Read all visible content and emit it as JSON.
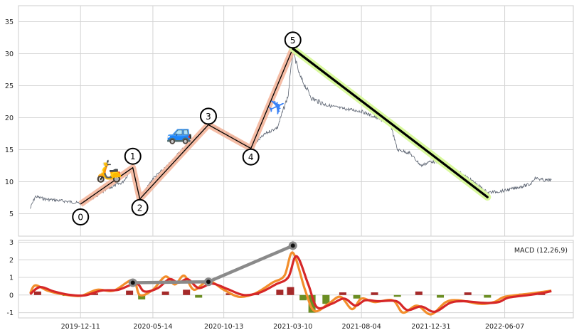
{
  "chart_data": [
    {
      "type": "line",
      "panel": "price",
      "title": "",
      "xlabel": "",
      "ylabel": "",
      "x_tick_labels": [
        "2019-12-11",
        "2020-05-14",
        "2020-10-13",
        "2021-03-10",
        "2021-08-04",
        "2021-12-31",
        "2022-06-07"
      ],
      "y_ticks": [
        5,
        10,
        15,
        20,
        25,
        30,
        35
      ],
      "ylim": [
        1.5,
        37.5
      ],
      "grid": true,
      "series": [
        {
          "role": "price",
          "color": "#5a6270",
          "points": [
            [
              "2019-08-25",
              5.8
            ],
            [
              "2019-09-05",
              7.7
            ],
            [
              "2019-09-25",
              7.3
            ],
            [
              "2019-10-20",
              7.1
            ],
            [
              "2019-11-15",
              6.9
            ],
            [
              "2019-12-11",
              6.6
            ],
            [
              "2020-01-10",
              7.6
            ],
            [
              "2020-02-10",
              9.0
            ],
            [
              "2020-03-10",
              9.9
            ],
            [
              "2020-04-01",
              12.2
            ],
            [
              "2020-04-12",
              8.5
            ],
            [
              "2020-04-16",
              7.2
            ],
            [
              "2020-05-14",
              10.5
            ],
            [
              "2020-06-15",
              12.5
            ],
            [
              "2020-07-15",
              15.0
            ],
            [
              "2020-08-15",
              16.8
            ],
            [
              "2020-09-10",
              18.9
            ],
            [
              "2020-10-13",
              17.8
            ],
            [
              "2020-11-15",
              16.3
            ],
            [
              "2020-12-10",
              15.4
            ],
            [
              "2021-01-10",
              17.5
            ],
            [
              "2021-02-05",
              18.5
            ],
            [
              "2021-02-28",
              23.5
            ],
            [
              "2021-03-10",
              30.5
            ],
            [
              "2021-03-25",
              26.5
            ],
            [
              "2021-04-20",
              23.0
            ],
            [
              "2021-05-20",
              22.0
            ],
            [
              "2021-06-20",
              21.5
            ],
            [
              "2021-08-04",
              21.0
            ],
            [
              "2021-09-05",
              20.0
            ],
            [
              "2021-10-05",
              19.0
            ],
            [
              "2021-10-20",
              15.0
            ],
            [
              "2021-11-15",
              14.5
            ],
            [
              "2021-12-10",
              12.5
            ],
            [
              "2021-12-31",
              13.2
            ],
            [
              "2022-02-01",
              12.8
            ],
            [
              "2022-03-01",
              11.5
            ],
            [
              "2022-04-01",
              10.0
            ],
            [
              "2022-05-01",
              8.3
            ],
            [
              "2022-06-07",
              8.6
            ],
            [
              "2022-07-10",
              9.2
            ],
            [
              "2022-08-01",
              9.6
            ],
            [
              "2022-08-10",
              10.6
            ],
            [
              "2022-09-01",
              10.2
            ],
            [
              "2022-09-15",
              10.3
            ]
          ]
        },
        {
          "role": "wave-path",
          "color": "#f4b69c",
          "points": [
            [
              "2019-12-11",
              6.5
            ],
            [
              "2020-04-01",
              12.2
            ],
            [
              "2020-04-16",
              7.3
            ],
            [
              "2020-09-10",
              18.9
            ],
            [
              "2020-12-10",
              15.2
            ],
            [
              "2021-03-10",
              30.8
            ]
          ]
        },
        {
          "role": "trend-line",
          "color": "#000000",
          "points": [
            [
              "2021-03-10",
              30.8
            ],
            [
              "2022-05-01",
              7.6
            ]
          ]
        }
      ],
      "wave_labels": [
        {
          "label": "0",
          "date": "2019-12-11",
          "value": 6.5
        },
        {
          "label": "1",
          "date": "2020-04-01",
          "value": 12.2
        },
        {
          "label": "2",
          "date": "2020-04-16",
          "value": 7.3
        },
        {
          "label": "3",
          "date": "2020-09-10",
          "value": 18.9
        },
        {
          "label": "4",
          "date": "2020-12-10",
          "value": 15.2
        },
        {
          "label": "5",
          "date": "2021-03-10",
          "value": 30.8
        }
      ],
      "icons": [
        {
          "name": "scooter-icon",
          "glyph": "🛵",
          "date": "2020-02-10",
          "value": 11.5
        },
        {
          "name": "car-icon",
          "glyph": "🚙",
          "date": "2020-07-10",
          "value": 17.5
        },
        {
          "name": "airplane-icon",
          "glyph": "✈",
          "date": "2021-02-05",
          "value": 21.5
        }
      ],
      "colors": {
        "wave_path": "#f4b69c",
        "trend_glow": "#d9f99d",
        "price": "#5a6270"
      }
    },
    {
      "type": "line",
      "panel": "indicator",
      "label": "MACD (12,26,9)",
      "y_ticks": [
        -1,
        0,
        1,
        2,
        3
      ],
      "ylim": [
        -1.3,
        3.1
      ],
      "grid": true,
      "series": [
        {
          "role": "macd",
          "color": "#f28e2b",
          "points": [
            [
              "2019-08-25",
              0.1
            ],
            [
              "2019-09-05",
              0.55
            ],
            [
              "2019-10-01",
              0.25
            ],
            [
              "2019-11-01",
              0.05
            ],
            [
              "2019-12-11",
              -0.05
            ],
            [
              "2020-01-15",
              0.3
            ],
            [
              "2020-02-20",
              0.25
            ],
            [
              "2020-04-01",
              0.85
            ],
            [
              "2020-04-16",
              0.0
            ],
            [
              "2020-05-14",
              0.3
            ],
            [
              "2020-06-10",
              1.05
            ],
            [
              "2020-06-30",
              0.6
            ],
            [
              "2020-07-20",
              1.1
            ],
            [
              "2020-08-10",
              0.3
            ],
            [
              "2020-09-10",
              0.8
            ],
            [
              "2020-10-13",
              0.3
            ],
            [
              "2020-11-15",
              -0.1
            ],
            [
              "2020-12-20",
              0.1
            ],
            [
              "2021-01-25",
              0.7
            ],
            [
              "2021-02-20",
              1.1
            ],
            [
              "2021-03-10",
              2.4
            ],
            [
              "2021-04-05",
              0.3
            ],
            [
              "2021-04-25",
              -0.9
            ],
            [
              "2021-05-25",
              -0.5
            ],
            [
              "2021-06-20",
              -0.1
            ],
            [
              "2021-07-15",
              -0.8
            ],
            [
              "2021-08-04",
              -0.2
            ],
            [
              "2021-09-01",
              -0.4
            ],
            [
              "2021-10-10",
              -0.3
            ],
            [
              "2021-11-01",
              -1.0
            ],
            [
              "2021-12-01",
              -0.6
            ],
            [
              "2021-12-31",
              -1.1
            ],
            [
              "2022-02-01",
              -0.4
            ],
            [
              "2022-03-01",
              -0.3
            ],
            [
              "2022-04-15",
              -0.5
            ],
            [
              "2022-05-15",
              -0.4
            ],
            [
              "2022-06-07",
              -0.1
            ],
            [
              "2022-07-20",
              0.05
            ],
            [
              "2022-08-20",
              0.15
            ],
            [
              "2022-09-15",
              0.25
            ]
          ]
        },
        {
          "role": "signal",
          "color": "#d62728",
          "points": [
            [
              "2019-08-25",
              0.05
            ],
            [
              "2019-09-15",
              0.45
            ],
            [
              "2019-10-15",
              0.2
            ],
            [
              "2019-11-15",
              0.02
            ],
            [
              "2019-12-20",
              -0.02
            ],
            [
              "2020-01-25",
              0.25
            ],
            [
              "2020-03-01",
              0.3
            ],
            [
              "2020-04-08",
              0.65
            ],
            [
              "2020-04-26",
              0.2
            ],
            [
              "2020-05-25",
              0.4
            ],
            [
              "2020-06-18",
              0.9
            ],
            [
              "2020-07-08",
              0.7
            ],
            [
              "2020-07-28",
              0.9
            ],
            [
              "2020-08-20",
              0.4
            ],
            [
              "2020-09-18",
              0.65
            ],
            [
              "2020-10-20",
              0.35
            ],
            [
              "2020-11-25",
              0.0
            ],
            [
              "2020-12-30",
              0.15
            ],
            [
              "2021-02-01",
              0.6
            ],
            [
              "2021-02-28",
              1.0
            ],
            [
              "2021-03-18",
              2.2
            ],
            [
              "2021-04-12",
              0.6
            ],
            [
              "2021-05-01",
              -0.7
            ],
            [
              "2021-06-01",
              -0.5
            ],
            [
              "2021-06-28",
              -0.2
            ],
            [
              "2021-07-22",
              -0.6
            ],
            [
              "2021-08-12",
              -0.3
            ],
            [
              "2021-09-10",
              -0.35
            ],
            [
              "2021-10-18",
              -0.35
            ],
            [
              "2021-11-10",
              -0.85
            ],
            [
              "2021-12-10",
              -0.65
            ],
            [
              "2022-01-08",
              -0.95
            ],
            [
              "2022-02-10",
              -0.45
            ],
            [
              "2022-03-10",
              -0.35
            ],
            [
              "2022-04-25",
              -0.45
            ],
            [
              "2022-05-25",
              -0.4
            ],
            [
              "2022-06-15",
              -0.15
            ],
            [
              "2022-07-28",
              0.0
            ],
            [
              "2022-08-28",
              0.12
            ],
            [
              "2022-09-15",
              0.22
            ]
          ]
        },
        {
          "role": "divergence-line",
          "color": "#8a8a8a",
          "points": [
            [
              "2020-04-01",
              0.7
            ],
            [
              "2020-09-10",
              0.75
            ],
            [
              "2021-03-10",
              2.8
            ]
          ]
        }
      ],
      "histogram": {
        "positive_color": "#a52a2a",
        "negative_color": "#6b8e23",
        "bars": [
          [
            "2019-09-10",
            0.2
          ],
          [
            "2019-11-10",
            -0.05
          ],
          [
            "2020-01-10",
            0.1
          ],
          [
            "2020-03-25",
            0.25
          ],
          [
            "2020-04-20",
            -0.25
          ],
          [
            "2020-06-10",
            0.2
          ],
          [
            "2020-07-25",
            0.3
          ],
          [
            "2020-08-20",
            -0.15
          ],
          [
            "2020-10-25",
            0.1
          ],
          [
            "2020-12-20",
            0.1
          ],
          [
            "2021-02-10",
            0.3
          ],
          [
            "2021-03-05",
            0.45
          ],
          [
            "2021-04-01",
            -0.3
          ],
          [
            "2021-04-20",
            -1.0
          ],
          [
            "2021-05-20",
            -0.5
          ],
          [
            "2021-06-25",
            0.15
          ],
          [
            "2021-07-25",
            -0.2
          ],
          [
            "2021-09-01",
            0.15
          ],
          [
            "2021-10-20",
            -0.1
          ],
          [
            "2021-12-05",
            0.2
          ],
          [
            "2022-01-20",
            -0.15
          ],
          [
            "2022-03-20",
            0.15
          ],
          [
            "2022-05-01",
            -0.15
          ],
          [
            "2022-07-15",
            0.08
          ],
          [
            "2022-08-25",
            0.08
          ]
        ]
      }
    }
  ]
}
